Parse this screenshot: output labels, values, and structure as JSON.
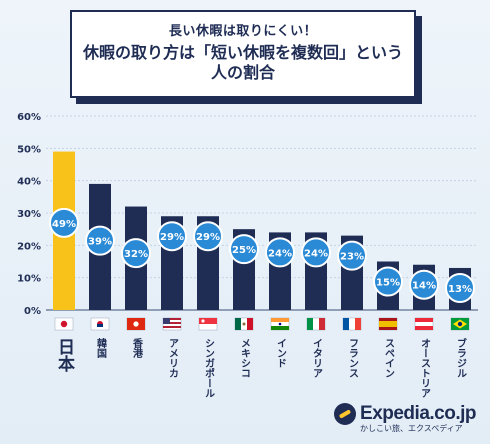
{
  "header": {
    "subtitle": "長い休暇は取りにくい！",
    "title": "休暇の取り方は「短い休暇を複数回」という人の割合"
  },
  "logo": {
    "name": "Expedia.co.jp",
    "tagline": "かしこい旅、エクスペディア"
  },
  "colors": {
    "highlight": "#f9c21b",
    "bar": "#1f2d55",
    "bubble": "#2a8ad6",
    "grid": "#c4d3e2"
  },
  "chart_data": {
    "type": "bar",
    "categories": [
      "日本",
      "韓国",
      "香港",
      "アメリカ",
      "シンガポール",
      "メキシコ",
      "インド",
      "イタリア",
      "フランス",
      "スペイン",
      "オーストリア",
      "ブラジル"
    ],
    "values": [
      49,
      39,
      32,
      29,
      29,
      25,
      24,
      24,
      23,
      15,
      14,
      13
    ],
    "value_labels": [
      "49%",
      "39%",
      "32%",
      "29%",
      "29%",
      "25%",
      "24%",
      "24%",
      "23%",
      "15%",
      "14%",
      "13%"
    ],
    "flag_icons": [
      "japan-flag-icon",
      "korea-flag-icon",
      "hongkong-flag-icon",
      "usa-flag-icon",
      "singapore-flag-icon",
      "mexico-flag-icon",
      "india-flag-icon",
      "italy-flag-icon",
      "france-flag-icon",
      "spain-flag-icon",
      "austria-flag-icon",
      "brazil-flag-icon"
    ],
    "yticks": [
      "0%",
      "10%",
      "20%",
      "30%",
      "40%",
      "50%",
      "60%"
    ],
    "ylim": [
      0,
      60
    ],
    "grid": true,
    "highlight_index": 0
  }
}
